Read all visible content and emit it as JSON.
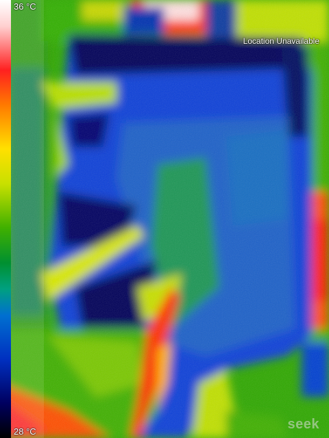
{
  "scale": {
    "max_label": "36 °C",
    "min_label": "28 °C"
  },
  "status": {
    "location_text": "Location Unavailable"
  },
  "brand": {
    "logo_text": "seek"
  },
  "colors": {
    "hot": "#ff2020",
    "warm": "#ffe000",
    "mid": "#30b000",
    "cool": "#0040e0",
    "cold": "#000050"
  }
}
